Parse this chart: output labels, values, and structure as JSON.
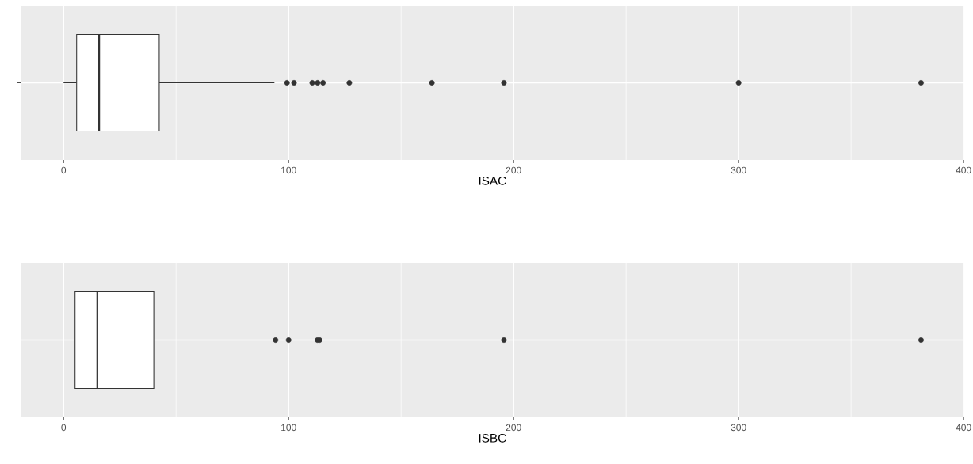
{
  "chart_data": [
    {
      "type": "box",
      "orientation": "horizontal",
      "categories": [
        null
      ],
      "xlabel": "ISAC",
      "xlim": [
        -19.1,
        400.2
      ],
      "xticks": [
        0,
        100,
        200,
        300,
        400
      ],
      "grid": true,
      "marker": "circle",
      "boxes": [
        {
          "low": 0,
          "q1": 5.8,
          "median": 15.8,
          "q3": 42.5,
          "high": 93.7,
          "outliers": [
            99.3,
            102.4,
            110.5,
            112.9,
            115.3,
            127,
            163.7,
            195.7,
            300,
            381.1
          ]
        }
      ]
    },
    {
      "type": "box",
      "orientation": "horizontal",
      "categories": [
        null
      ],
      "xlabel": "ISBC",
      "xlim": [
        -19.1,
        400.2
      ],
      "xticks": [
        0,
        100,
        200,
        300,
        400
      ],
      "grid": true,
      "marker": "circle",
      "boxes": [
        {
          "low": 0,
          "q1": 5.1,
          "median": 15.0,
          "q3": 40.1,
          "high": 89.0,
          "outliers": [
            94.2,
            100,
            112.8,
            113.8,
            195.7,
            381.1
          ]
        }
      ]
    }
  ]
}
